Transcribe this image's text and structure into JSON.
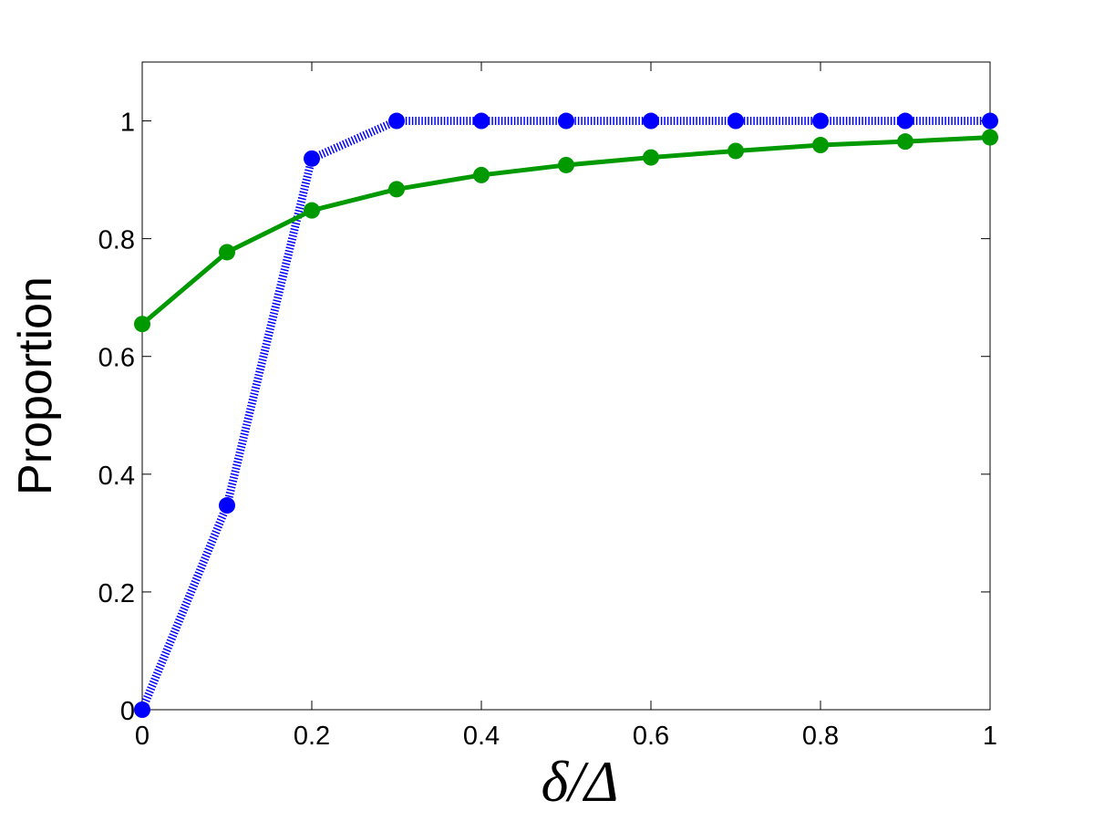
{
  "chart_data": {
    "type": "line",
    "x_label": "δ/Δ",
    "y_label": "Proportion",
    "x": [
      0,
      0.1,
      0.2,
      0.3,
      0.4,
      0.5,
      0.6,
      0.7,
      0.8,
      0.9,
      1
    ],
    "series": [
      {
        "color": "#0000ff",
        "style": "dotted",
        "values": [
          0,
          0.347,
          0.936,
          1,
          1,
          1,
          1,
          1,
          1,
          1,
          1
        ]
      },
      {
        "color": "#009900",
        "style": "solid",
        "values": [
          0.655,
          0.777,
          0.848,
          0.884,
          0.908,
          0.925,
          0.938,
          0.949,
          0.959,
          0.965,
          0.972
        ]
      }
    ],
    "xlim": [
      0,
      1
    ],
    "ylim": [
      0,
      1.1
    ],
    "xticks": [
      0,
      0.2,
      0.4,
      0.6,
      0.8,
      1
    ],
    "yticks": [
      0,
      0.2,
      0.4,
      0.6,
      0.8,
      1
    ]
  }
}
